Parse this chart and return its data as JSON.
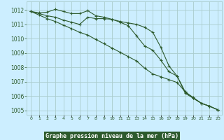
{
  "background_color": "#cceeff",
  "grid_color": "#aacccc",
  "line_color": "#2d5a2d",
  "xlabel": "Graphe pression niveau de la mer (hPa)",
  "hours": [
    0,
    1,
    2,
    3,
    4,
    5,
    6,
    7,
    8,
    9,
    10,
    11,
    12,
    13,
    14,
    15,
    16,
    17,
    18,
    19,
    20,
    21,
    22,
    23
  ],
  "line1": [
    1011.9,
    1011.8,
    1011.85,
    1012.05,
    1011.9,
    1011.75,
    1011.75,
    1011.95,
    1011.6,
    1011.5,
    1011.35,
    1011.15,
    1010.9,
    1010.2,
    1009.5,
    1009.2,
    1008.5,
    1007.7,
    1007.4,
    1006.3,
    1005.9,
    1005.5,
    1005.3,
    1005.05
  ],
  "line2": [
    1011.9,
    1011.75,
    1011.6,
    1011.5,
    1011.3,
    1011.15,
    1011.0,
    1011.5,
    1011.4,
    1011.4,
    1011.35,
    1011.2,
    1011.1,
    1011.0,
    1010.8,
    1010.45,
    1009.4,
    1008.1,
    1007.4,
    1006.2,
    1005.85,
    1005.5,
    1005.3,
    1005.05
  ],
  "line3": [
    1011.9,
    1011.65,
    1011.4,
    1011.2,
    1010.95,
    1010.7,
    1010.45,
    1010.25,
    1009.95,
    1009.65,
    1009.35,
    1009.05,
    1008.75,
    1008.45,
    1007.95,
    1007.55,
    1007.35,
    1007.15,
    1006.95,
    1006.3,
    1005.85,
    1005.5,
    1005.3,
    1005.05
  ],
  "ylim_min": 1004.7,
  "ylim_max": 1012.6,
  "yticks": [
    1005,
    1006,
    1007,
    1008,
    1009,
    1010,
    1011,
    1012
  ],
  "xlabel_bg_color": "#2d5a2d",
  "xlabel_text_color": "#ffffff",
  "tick_color": "#2d5a2d",
  "spine_color": "#aacccc"
}
